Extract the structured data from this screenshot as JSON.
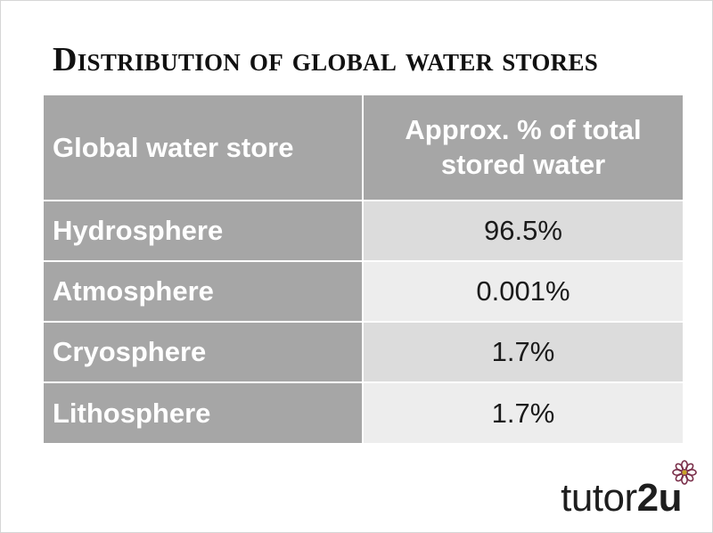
{
  "slide": {
    "title": "Distribution of global water stores"
  },
  "table": {
    "headers": [
      "Global water store",
      "Approx. % of total stored water"
    ],
    "rows": [
      {
        "store": "Hydrosphere",
        "percent": "96.5%"
      },
      {
        "store": "Atmosphere",
        "percent": "0.001%"
      },
      {
        "store": "Cryosphere",
        "percent": "1.7%"
      },
      {
        "store": "Lithosphere",
        "percent": "1.7%"
      }
    ]
  },
  "logo": {
    "text_plain": "tutor",
    "text_bold": "2u",
    "icon": "flower-icon"
  },
  "colors": {
    "header_bg": "#a6a6a6",
    "row_dark": "#dcdcdc",
    "row_light": "#ededed",
    "logo_petals": "#7a2f4a"
  }
}
